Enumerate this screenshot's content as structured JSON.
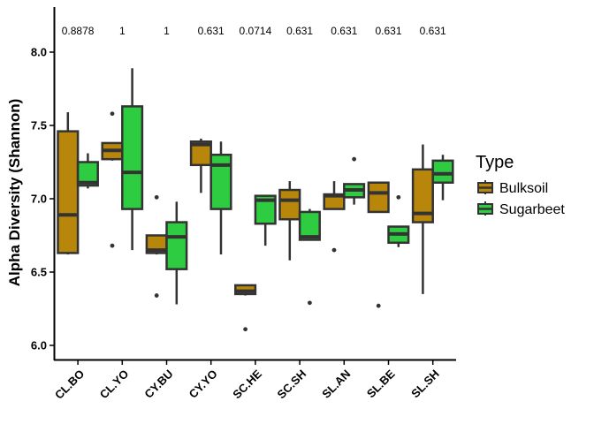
{
  "chart_data": {
    "type": "boxplot",
    "ylabel": "Alpha Diversity (Shannon)",
    "ylim": [
      5.92,
      8.4
    ],
    "yticks": [
      "6.0",
      "6.5",
      "7.0",
      "7.5",
      "8.0"
    ],
    "grid": false,
    "categories": [
      "CL.BO",
      "CL.YO",
      "CY.BU",
      "CY.YO",
      "SC.HE",
      "SC.SH",
      "SL.AN",
      "SL.BE",
      "SL.SH"
    ],
    "pvalues": [
      "0.8878",
      "1",
      "1",
      "0.631",
      "0.0714",
      "0.631",
      "0.631",
      "0.631",
      "0.631"
    ],
    "legend": {
      "title": "Type",
      "placement": "right"
    },
    "series": [
      {
        "name": "Bulksoil",
        "color": "#B8860B",
        "boxes": [
          {
            "category": "CL.BO",
            "whislo": 6.62,
            "q1": 6.63,
            "med": 6.89,
            "q3": 7.46,
            "whishi": 7.59,
            "outliers": []
          },
          {
            "category": "CL.YO",
            "whislo": 7.26,
            "q1": 7.27,
            "med": 7.33,
            "q3": 7.38,
            "whishi": 7.38,
            "outliers": [
              6.68,
              7.58
            ]
          },
          {
            "category": "CY.BU",
            "whislo": 6.62,
            "q1": 6.63,
            "med": 6.65,
            "q3": 6.75,
            "whishi": 6.75,
            "outliers": [
              6.34,
              7.01
            ]
          },
          {
            "category": "CY.YO",
            "whislo": 7.04,
            "q1": 7.23,
            "med": 7.37,
            "q3": 7.39,
            "whishi": 7.41,
            "outliers": []
          },
          {
            "category": "SC.HE",
            "whislo": 6.34,
            "q1": 6.35,
            "med": 6.37,
            "q3": 6.41,
            "whishi": 6.41,
            "outliers": [
              6.11
            ]
          },
          {
            "category": "SC.SH",
            "whislo": 6.58,
            "q1": 6.86,
            "med": 6.99,
            "q3": 7.06,
            "whishi": 7.12,
            "outliers": []
          },
          {
            "category": "SL.AN",
            "whislo": 6.93,
            "q1": 6.93,
            "med": 7.02,
            "q3": 7.03,
            "whishi": 7.12,
            "outliers": [
              6.65
            ]
          },
          {
            "category": "SL.BE",
            "whislo": 6.91,
            "q1": 6.91,
            "med": 7.04,
            "q3": 7.11,
            "whishi": 7.11,
            "outliers": [
              6.27
            ]
          },
          {
            "category": "SL.SH",
            "whislo": 6.35,
            "q1": 6.84,
            "med": 6.9,
            "q3": 7.2,
            "whishi": 7.37,
            "outliers": []
          }
        ]
      },
      {
        "name": "Sugarbeet",
        "color": "#2ECC40",
        "boxes": [
          {
            "category": "CL.BO",
            "whislo": 7.07,
            "q1": 7.09,
            "med": 7.11,
            "q3": 7.25,
            "whishi": 7.31,
            "outliers": []
          },
          {
            "category": "CL.YO",
            "whislo": 6.65,
            "q1": 6.93,
            "med": 7.18,
            "q3": 7.63,
            "whishi": 7.89,
            "outliers": []
          },
          {
            "category": "CY.BU",
            "whislo": 6.28,
            "q1": 6.52,
            "med": 6.74,
            "q3": 6.84,
            "whishi": 6.98,
            "outliers": []
          },
          {
            "category": "CY.YO",
            "whislo": 6.62,
            "q1": 6.93,
            "med": 7.23,
            "q3": 7.3,
            "whishi": 7.39,
            "outliers": []
          },
          {
            "category": "SC.SH",
            "whislo": 6.72,
            "q1": 6.72,
            "med": 6.74,
            "q3": 6.91,
            "whishi": 6.93,
            "outliers": [
              6.29
            ]
          },
          {
            "category": "SC.HE",
            "whislo": 6.68,
            "q1": 6.83,
            "med": 6.99,
            "q3": 7.02,
            "whishi": 7.02,
            "outliers": []
          },
          {
            "category": "SL.AN",
            "whislo": 6.96,
            "q1": 7.01,
            "med": 7.06,
            "q3": 7.1,
            "whishi": 7.1,
            "outliers": [
              7.27
            ]
          },
          {
            "category": "SL.BE",
            "whislo": 6.67,
            "q1": 6.7,
            "med": 6.76,
            "q3": 6.81,
            "whishi": 6.81,
            "outliers": [
              7.01
            ]
          },
          {
            "category": "SL.SH",
            "whislo": 6.99,
            "q1": 7.11,
            "med": 7.17,
            "q3": 7.26,
            "whishi": 7.3,
            "outliers": []
          }
        ]
      }
    ]
  }
}
